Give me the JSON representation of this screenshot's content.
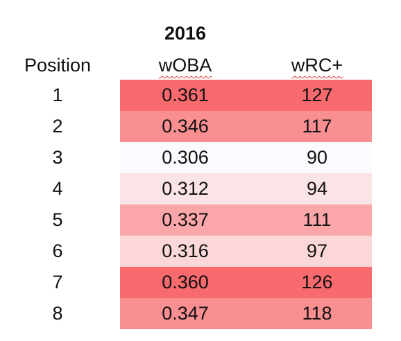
{
  "year": "2016",
  "headers": {
    "position": "Position",
    "woba": "wOBA",
    "wrc": "wRC+"
  },
  "rows": [
    {
      "position": "1",
      "woba": "0.361",
      "wrc": "127",
      "color": "#f86a6d"
    },
    {
      "position": "2",
      "woba": "0.346",
      "wrc": "117",
      "color": "#fa8f92"
    },
    {
      "position": "3",
      "woba": "0.306",
      "wrc": "90",
      "color": "#fafaff"
    },
    {
      "position": "4",
      "woba": "0.312",
      "wrc": "94",
      "color": "#fbe4e6"
    },
    {
      "position": "5",
      "woba": "0.337",
      "wrc": "111",
      "color": "#fba7aa"
    },
    {
      "position": "6",
      "woba": "0.316",
      "wrc": "97",
      "color": "#fbd7d9"
    },
    {
      "position": "7",
      "woba": "0.360",
      "wrc": "126",
      "color": "#f86a6d"
    },
    {
      "position": "8",
      "woba": "0.347",
      "wrc": "118",
      "color": "#fa8f92"
    }
  ]
}
